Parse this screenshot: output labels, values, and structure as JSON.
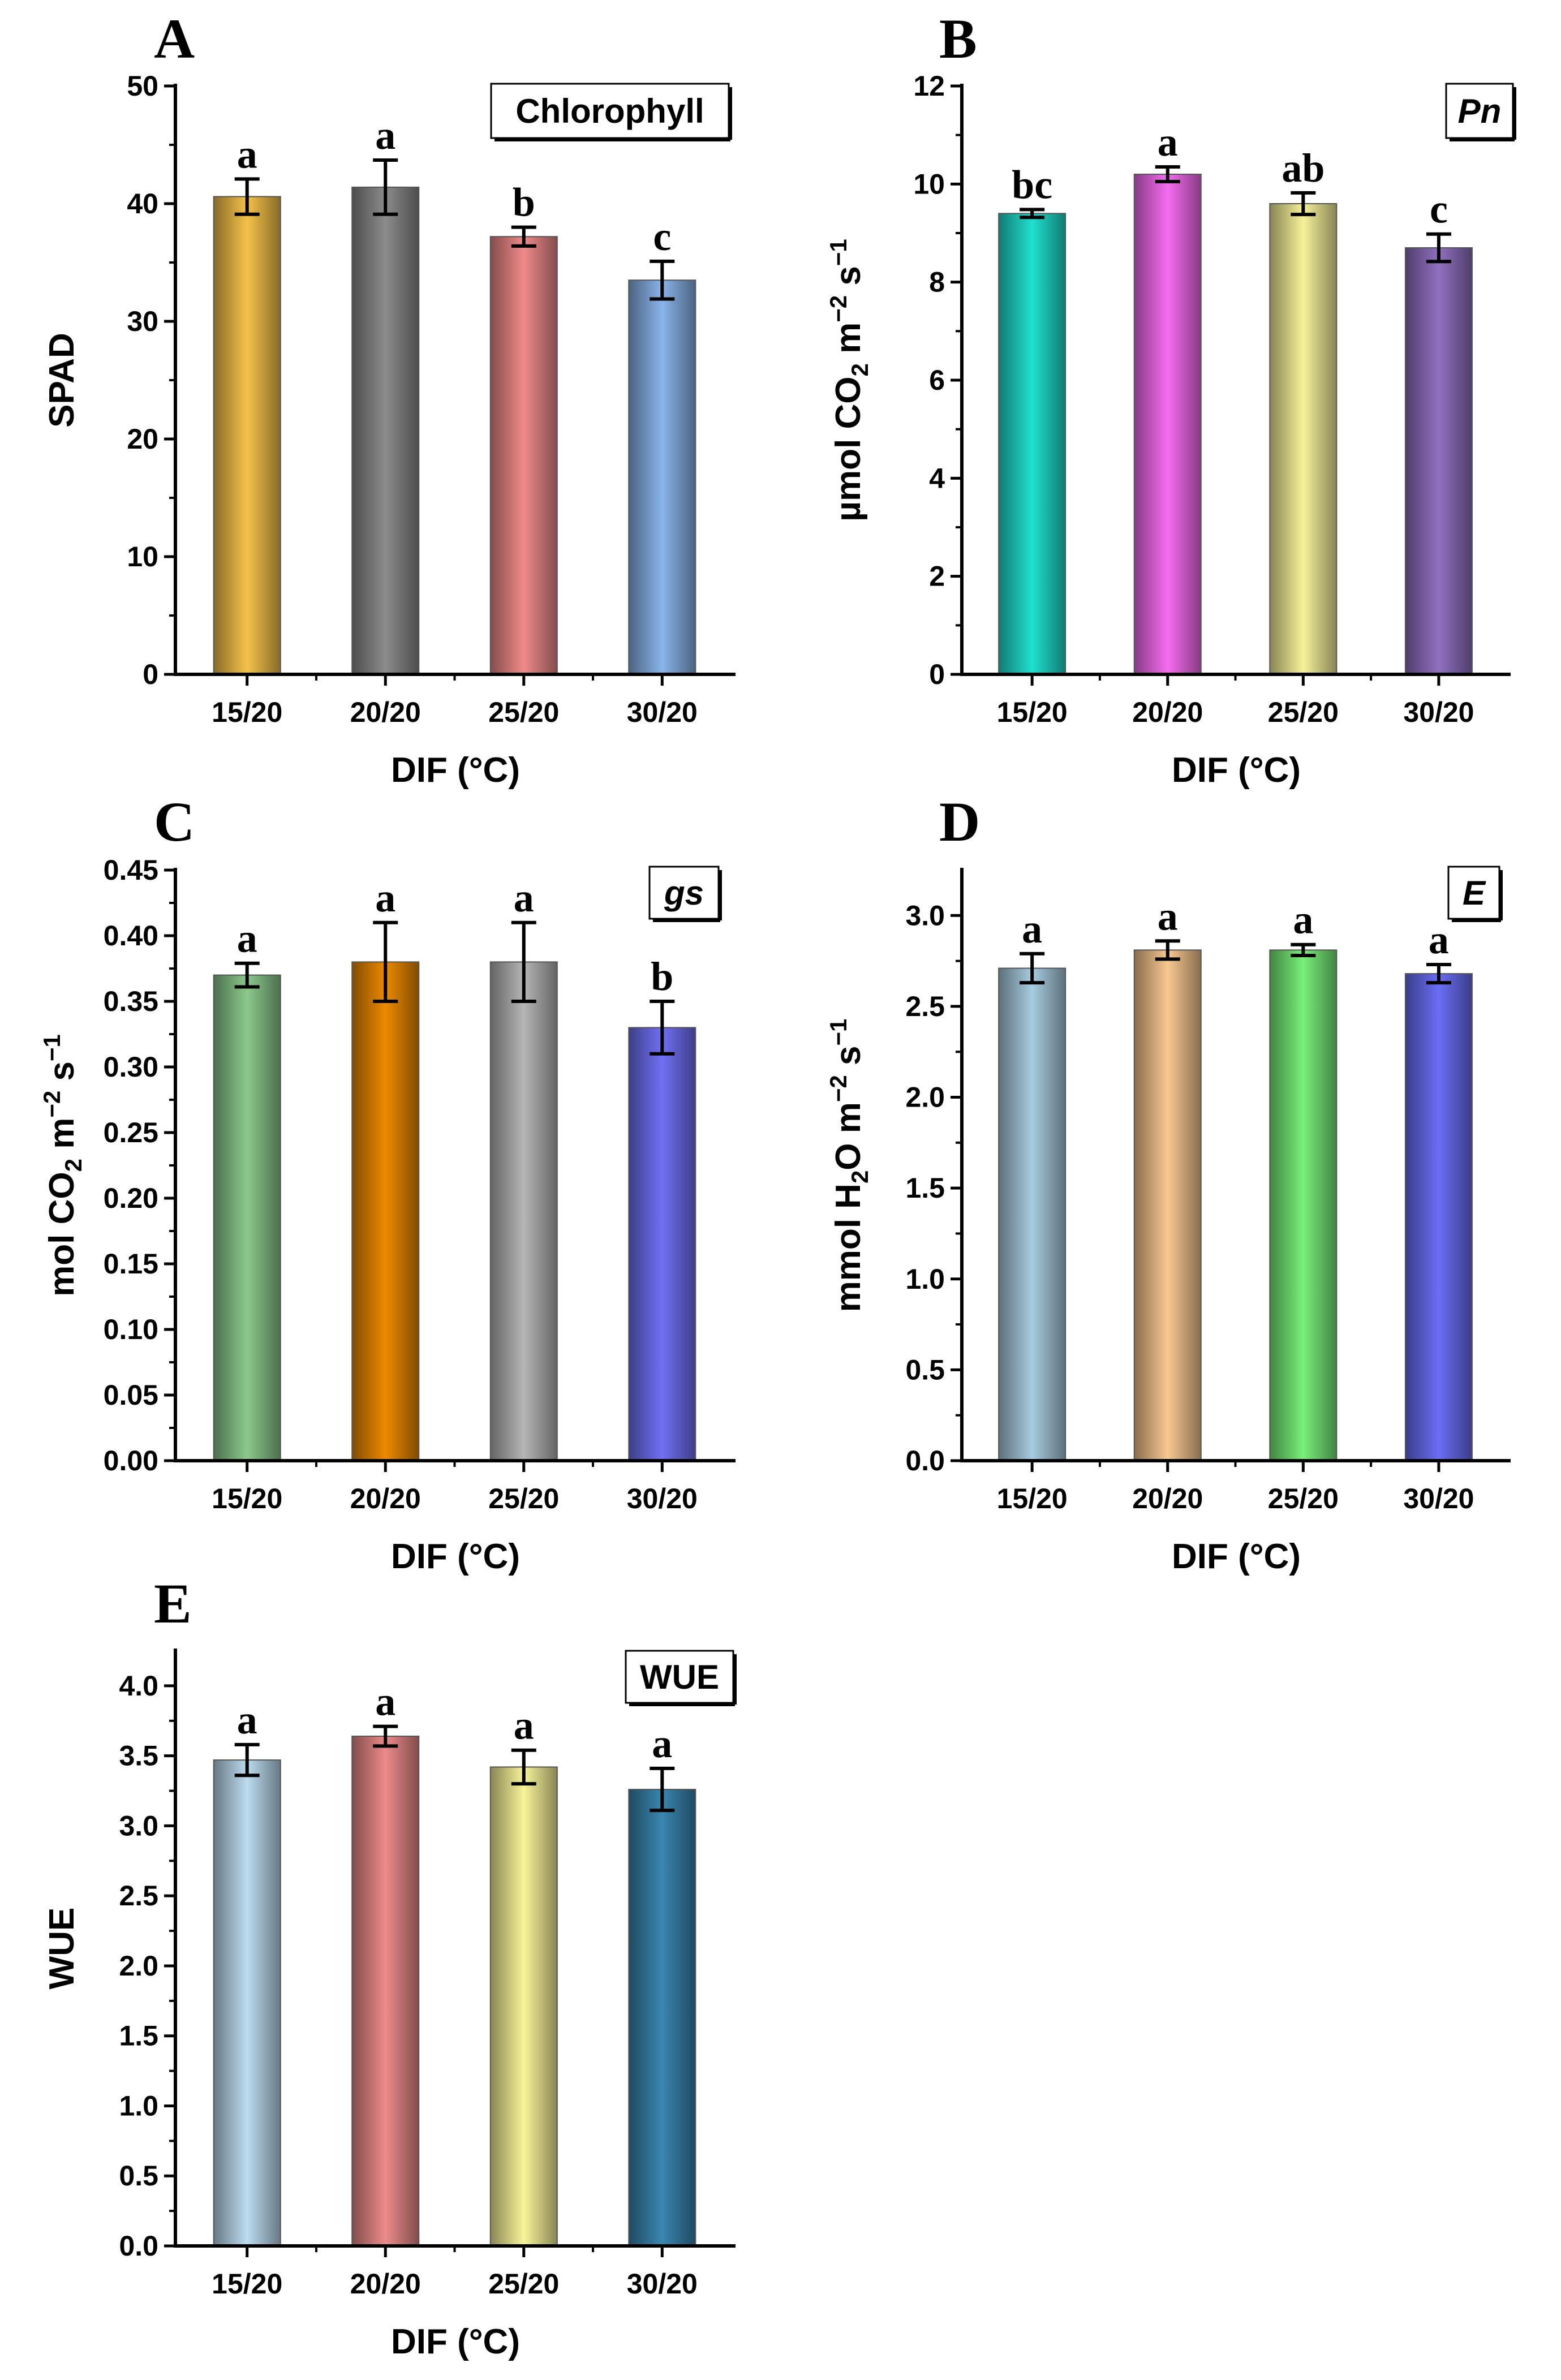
{
  "chart_data": [
    {
      "type": "bar",
      "panel": "A",
      "legend": "Chlorophyll",
      "legend_italic": false,
      "xlabel": "DIF (°C)",
      "ylabel_parts": [
        {
          "t": "SPAD"
        }
      ],
      "categories": [
        "15/20",
        "20/20",
        "25/20",
        "30/20"
      ],
      "values": [
        40.6,
        41.4,
        37.2,
        33.5
      ],
      "errors": [
        1.5,
        2.3,
        0.8,
        1.6
      ],
      "significance": [
        "a",
        "a",
        "b",
        "c"
      ],
      "colors": [
        "#f5c24a",
        "#8c8c8c",
        "#f08a8a",
        "#8ab4ea"
      ],
      "ylim": [
        0,
        50
      ],
      "yticks": [
        0,
        10,
        20,
        30,
        40,
        50
      ],
      "ytick_labels": [
        "0",
        "10",
        "20",
        "30",
        "40",
        "50"
      ]
    },
    {
      "type": "bar",
      "panel": "B",
      "legend": "Pn",
      "legend_italic": true,
      "xlabel": "DIF (°C)",
      "ylabel_parts": [
        {
          "t": "µmol CO"
        },
        {
          "t": "2",
          "s": "sub"
        },
        {
          "t": " m"
        },
        {
          "t": "−2",
          "s": "sup"
        },
        {
          "t": " s"
        },
        {
          "t": "−1",
          "s": "sup"
        }
      ],
      "categories": [
        "15/20",
        "20/20",
        "25/20",
        "30/20"
      ],
      "values": [
        9.4,
        10.2,
        9.6,
        8.7
      ],
      "errors": [
        0.08,
        0.15,
        0.22,
        0.28
      ],
      "significance": [
        "bc",
        "a",
        "ab",
        "c"
      ],
      "colors": [
        "#1fe0cf",
        "#f56cf0",
        "#f6f29a",
        "#9070c0"
      ],
      "ylim": [
        0,
        12
      ],
      "yticks": [
        0,
        2,
        4,
        6,
        8,
        10,
        12
      ],
      "ytick_labels": [
        "0",
        "2",
        "4",
        "6",
        "8",
        "10",
        "12"
      ]
    },
    {
      "type": "bar",
      "panel": "C",
      "legend": "gs",
      "legend_italic": true,
      "xlabel": "DIF (°C)",
      "ylabel_parts": [
        {
          "t": "mol CO"
        },
        {
          "t": "2",
          "s": "sub"
        },
        {
          "t": " m"
        },
        {
          "t": "−2",
          "s": "sup"
        },
        {
          "t": " s"
        },
        {
          "t": "−1",
          "s": "sup"
        }
      ],
      "categories": [
        "15/20",
        "20/20",
        "25/20",
        "30/20"
      ],
      "values": [
        0.37,
        0.38,
        0.38,
        0.33
      ],
      "errors": [
        0.009,
        0.03,
        0.03,
        0.02
      ],
      "significance": [
        "a",
        "a",
        "a",
        "b"
      ],
      "colors": [
        "#8cc98c",
        "#ec8a00",
        "#b6b6b6",
        "#7070f5"
      ],
      "ylim": [
        0,
        0.45
      ],
      "yticks": [
        0,
        0.05,
        0.1,
        0.15,
        0.2,
        0.25,
        0.3,
        0.35,
        0.4,
        0.45
      ],
      "ytick_labels": [
        "0.00",
        "0.05",
        "0.10",
        "0.15",
        "0.20",
        "0.25",
        "0.30",
        "0.35",
        "0.40",
        "0.45"
      ]
    },
    {
      "type": "bar",
      "panel": "D",
      "legend": "E",
      "legend_italic": true,
      "xlabel": "DIF (°C)",
      "ylabel_parts": [
        {
          "t": "mmol H"
        },
        {
          "t": "2",
          "s": "sub"
        },
        {
          "t": "O m"
        },
        {
          "t": "−2",
          "s": "sup"
        },
        {
          "t": " s"
        },
        {
          "t": "−1",
          "s": "sup"
        }
      ],
      "categories": [
        "15/20",
        "20/20",
        "25/20",
        "30/20"
      ],
      "values": [
        2.71,
        2.81,
        2.81,
        2.68
      ],
      "errors": [
        0.08,
        0.05,
        0.03,
        0.05
      ],
      "significance": [
        "a",
        "a",
        "a",
        "a"
      ],
      "colors": [
        "#a8cce0",
        "#f8c890",
        "#78f078",
        "#6a6ef5"
      ],
      "ylim": [
        0,
        3.25
      ],
      "yticks": [
        0,
        0.5,
        1,
        1.5,
        2,
        2.5,
        3
      ],
      "ytick_labels": [
        "0.0",
        "0.5",
        "1.0",
        "1.5",
        "2.0",
        "2.5",
        "3.0"
      ]
    },
    {
      "type": "bar",
      "panel": "E",
      "legend": "WUE",
      "legend_italic": false,
      "xlabel": "DIF (°C)",
      "ylabel_parts": [
        {
          "t": "WUE"
        }
      ],
      "categories": [
        "15/20",
        "20/20",
        "25/20",
        "30/20"
      ],
      "values": [
        3.47,
        3.64,
        3.42,
        3.26
      ],
      "errors": [
        0.11,
        0.07,
        0.12,
        0.15
      ],
      "significance": [
        "a",
        "a",
        "a",
        "a"
      ],
      "colors": [
        "#bcdcf0",
        "#ec8a8a",
        "#f8f49a",
        "#3a86b0"
      ],
      "ylim": [
        0,
        4.25
      ],
      "yticks": [
        0,
        0.5,
        1,
        1.5,
        2,
        2.5,
        3,
        3.5,
        4
      ],
      "ytick_labels": [
        "0.0",
        "0.5",
        "1.0",
        "1.5",
        "2.0",
        "2.5",
        "3.0",
        "3.5",
        "4.0"
      ]
    }
  ]
}
